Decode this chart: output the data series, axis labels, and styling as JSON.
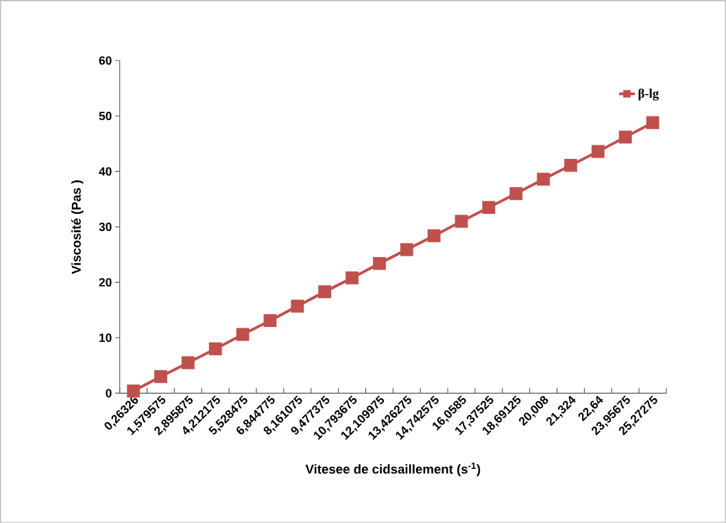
{
  "chart_data": {
    "type": "line",
    "xlabel": "Vitesee de cidsaillement  (s$^{-1}$)",
    "ylabel": "Viscosité (Pas )",
    "categories": [
      "0,26326",
      "1,579575",
      "2,895875",
      "4,212175",
      "5,528475",
      "6,844775",
      "8,161075",
      "9,477375",
      "10,793675",
      "12,109975",
      "13,426275",
      "14,742575",
      "16,0585",
      "17,37525",
      "18,69125",
      "20,008",
      "21,324",
      "22,64",
      "23,95675",
      "25,27275"
    ],
    "series": [
      {
        "name": "β-lg",
        "color": "#c0504d",
        "values": [
          0.4,
          3.0,
          5.5,
          8.0,
          10.6,
          13.1,
          15.7,
          18.3,
          20.8,
          23.4,
          25.9,
          28.4,
          31.0,
          33.5,
          36.0,
          38.6,
          41.1,
          43.6,
          46.2,
          48.8
        ]
      }
    ],
    "ylim": [
      0,
      60
    ],
    "yticks": [
      0,
      10,
      20,
      30,
      40,
      50,
      60
    ],
    "legend": "top right",
    "marker": "square",
    "line_style": "solid"
  }
}
